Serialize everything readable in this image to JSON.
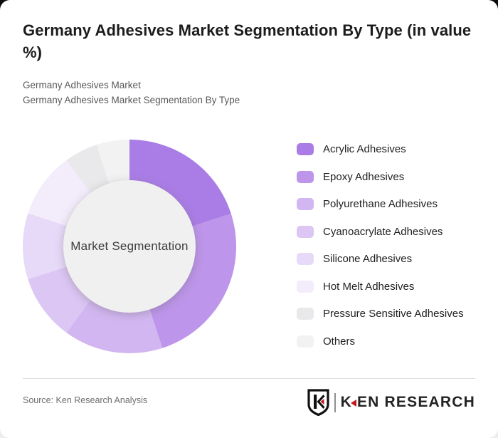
{
  "header": {
    "title": "Germany Adhesives Market Segmentation By Type (in value %)",
    "subtitle_line1": "Germany Adhesives Market",
    "subtitle_line2": "Germany Adhesives Market Segmentation By Type"
  },
  "chart_data": {
    "type": "pie",
    "variant": "donut",
    "title": "Germany Adhesives Market Segmentation By Type (in value %)",
    "unit": "value %",
    "center_label": "Market Segmentation",
    "legend_position": "right",
    "start_angle_deg": 0,
    "direction": "clockwise",
    "segments": [
      {
        "label": "Acrylic Adhesives",
        "value": 20,
        "color": "#aa7de6"
      },
      {
        "label": "Epoxy Adhesives",
        "value": 25,
        "color": "#bd95ea"
      },
      {
        "label": "Polyurethane Adhesives",
        "value": 15,
        "color": "#d2b6f1"
      },
      {
        "label": "Cyanoacrylate Adhesives",
        "value": 10,
        "color": "#dcc6f4"
      },
      {
        "label": "Silicone Adhesives",
        "value": 10,
        "color": "#e7d9f8"
      },
      {
        "label": "Hot Melt Adhesives",
        "value": 10,
        "color": "#f2ecfb"
      },
      {
        "label": "Pressure Sensitive Adhesives",
        "value": 5,
        "color": "#e9e8ea"
      },
      {
        "label": "Others",
        "value": 5,
        "color": "#f2f2f2"
      }
    ]
  },
  "footer": {
    "source": "Source: Ken Research Analysis",
    "logo": {
      "shield_letter": "K",
      "text_part1": "K",
      "text_part2": "EN RESEARCH",
      "accent_color": "#c4161c"
    }
  }
}
